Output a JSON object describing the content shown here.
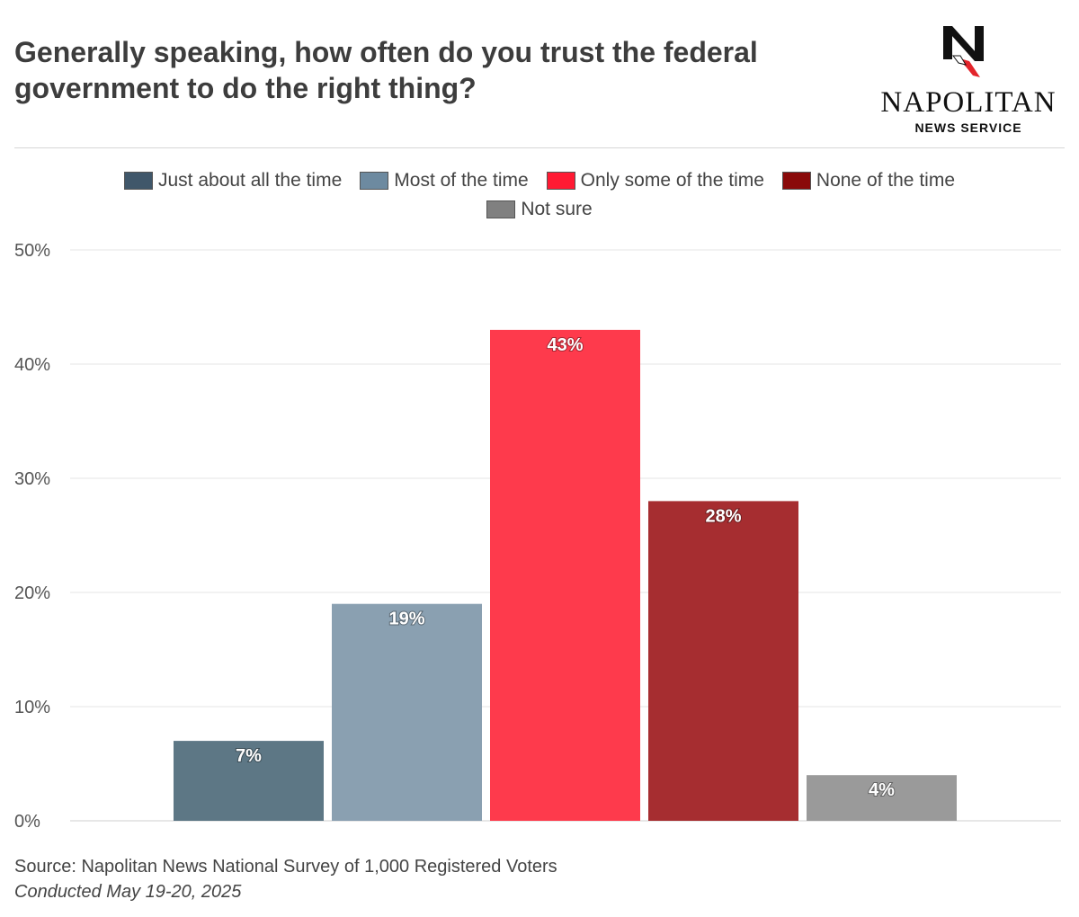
{
  "title": "Generally speaking, how often do you trust the federal government to do the right thing?",
  "logo": {
    "name": "NAPOLITAN",
    "subtitle": "NEWS SERVICE"
  },
  "source": {
    "line1": "Source: Napolitan News National Survey of 1,000 Registered Voters",
    "line2": "Conducted May 19-20, 2025"
  },
  "chart_data": {
    "type": "bar",
    "categories": [
      "Just about all the time",
      "Most of the time",
      "Only some of the time",
      "None of the time",
      "Not sure"
    ],
    "values": [
      7,
      19,
      43,
      28,
      4
    ],
    "data_labels": [
      "7%",
      "19%",
      "43%",
      "28%",
      "4%"
    ],
    "colors": [
      "#5d7785",
      "#8aa0b1",
      "#fe3a4c",
      "#a62d30",
      "#9a9a9a"
    ],
    "legend_colors": [
      "#40576a",
      "#6d8aa0",
      "#ff1a33",
      "#8a0a0a",
      "#808080"
    ],
    "ylim": [
      0,
      50
    ],
    "yticks": [
      0,
      10,
      20,
      30,
      40,
      50
    ],
    "ytick_labels": [
      "0%",
      "10%",
      "20%",
      "30%",
      "40%",
      "50%"
    ],
    "grid": true,
    "legend_position": "top-center"
  }
}
